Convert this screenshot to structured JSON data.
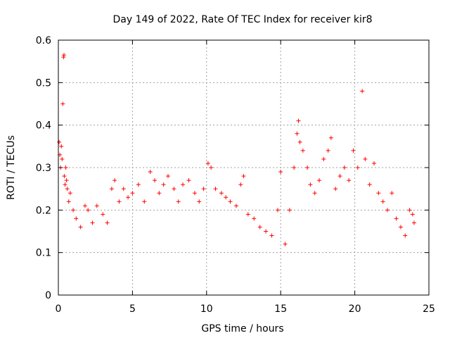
{
  "chart_data": {
    "type": "scatter",
    "title": "Day 149 of 2022, Rate Of TEC Index for receiver kir8",
    "xlabel": "GPS time / hours",
    "ylabel": "ROTI / TECUs",
    "xlim": [
      0,
      25
    ],
    "ylim": [
      0,
      0.6
    ],
    "xticks": [
      0,
      5,
      10,
      15,
      20,
      25
    ],
    "yticks": [
      0,
      0.1,
      0.2,
      0.3,
      0.4,
      0.5,
      0.6
    ],
    "xtick_labels": [
      "0",
      "5",
      "10",
      "15",
      "20",
      "25"
    ],
    "ytick_labels": [
      "0",
      "0.1",
      "0.2",
      "0.3",
      "0.4",
      "0.5",
      "0.6"
    ],
    "grid": true,
    "marker": "plus",
    "color": "#ff0000",
    "series": [
      {
        "points": [
          [
            0.05,
            0.36
          ],
          [
            0.1,
            0.33
          ],
          [
            0.15,
            0.3
          ],
          [
            0.2,
            0.35
          ],
          [
            0.25,
            0.32
          ],
          [
            0.3,
            0.45
          ],
          [
            0.35,
            0.56
          ],
          [
            0.38,
            0.565
          ],
          [
            0.4,
            0.28
          ],
          [
            0.45,
            0.26
          ],
          [
            0.5,
            0.3
          ],
          [
            0.55,
            0.27
          ],
          [
            0.6,
            0.25
          ],
          [
            0.7,
            0.22
          ],
          [
            0.8,
            0.24
          ],
          [
            1.0,
            0.2
          ],
          [
            1.2,
            0.18
          ],
          [
            1.5,
            0.16
          ],
          [
            1.8,
            0.21
          ],
          [
            2.0,
            0.2
          ],
          [
            2.3,
            0.17
          ],
          [
            2.6,
            0.21
          ],
          [
            3.0,
            0.19
          ],
          [
            3.3,
            0.17
          ],
          [
            3.6,
            0.25
          ],
          [
            3.8,
            0.27
          ],
          [
            4.1,
            0.22
          ],
          [
            4.4,
            0.25
          ],
          [
            4.7,
            0.23
          ],
          [
            5.0,
            0.24
          ],
          [
            5.4,
            0.26
          ],
          [
            5.8,
            0.22
          ],
          [
            6.2,
            0.29
          ],
          [
            6.5,
            0.27
          ],
          [
            6.8,
            0.24
          ],
          [
            7.1,
            0.26
          ],
          [
            7.4,
            0.28
          ],
          [
            7.8,
            0.25
          ],
          [
            8.1,
            0.22
          ],
          [
            8.4,
            0.26
          ],
          [
            8.8,
            0.27
          ],
          [
            9.2,
            0.24
          ],
          [
            9.5,
            0.22
          ],
          [
            9.8,
            0.25
          ],
          [
            10.1,
            0.31
          ],
          [
            10.3,
            0.3
          ],
          [
            10.6,
            0.25
          ],
          [
            11.0,
            0.24
          ],
          [
            11.3,
            0.23
          ],
          [
            11.6,
            0.22
          ],
          [
            12.0,
            0.21
          ],
          [
            12.3,
            0.26
          ],
          [
            12.5,
            0.28
          ],
          [
            12.8,
            0.19
          ],
          [
            13.2,
            0.18
          ],
          [
            13.6,
            0.16
          ],
          [
            14.0,
            0.15
          ],
          [
            14.4,
            0.14
          ],
          [
            14.8,
            0.2
          ],
          [
            15.0,
            0.29
          ],
          [
            15.3,
            0.12
          ],
          [
            15.6,
            0.2
          ],
          [
            15.9,
            0.3
          ],
          [
            16.1,
            0.38
          ],
          [
            16.2,
            0.41
          ],
          [
            16.3,
            0.36
          ],
          [
            16.5,
            0.34
          ],
          [
            16.8,
            0.3
          ],
          [
            17.0,
            0.26
          ],
          [
            17.3,
            0.24
          ],
          [
            17.6,
            0.27
          ],
          [
            17.9,
            0.32
          ],
          [
            18.2,
            0.34
          ],
          [
            18.4,
            0.37
          ],
          [
            18.7,
            0.25
          ],
          [
            19.0,
            0.28
          ],
          [
            19.3,
            0.3
          ],
          [
            19.6,
            0.27
          ],
          [
            19.9,
            0.34
          ],
          [
            20.2,
            0.3
          ],
          [
            20.5,
            0.48
          ],
          [
            20.7,
            0.32
          ],
          [
            21.0,
            0.26
          ],
          [
            21.3,
            0.31
          ],
          [
            21.6,
            0.24
          ],
          [
            21.9,
            0.22
          ],
          [
            22.2,
            0.2
          ],
          [
            22.5,
            0.24
          ],
          [
            22.8,
            0.18
          ],
          [
            23.1,
            0.16
          ],
          [
            23.4,
            0.14
          ],
          [
            23.7,
            0.2
          ],
          [
            23.9,
            0.19
          ],
          [
            24.0,
            0.17
          ]
        ]
      }
    ]
  }
}
